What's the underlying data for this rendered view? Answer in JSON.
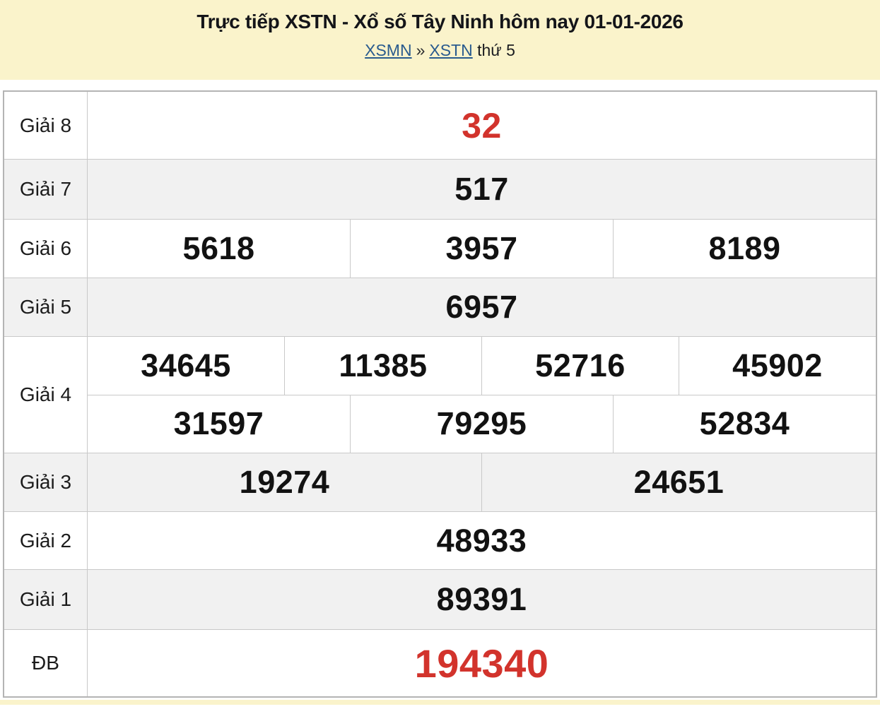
{
  "header": {
    "title": "Trực tiếp XSTN - Xổ số Tây Ninh hôm nay 01-01-2026",
    "breadcrumb": {
      "xsmn": "XSMN",
      "separator": "»",
      "xstn": "XSTN",
      "day": "thứ 5"
    }
  },
  "colors": {
    "banner_yellow": "#faf3cb",
    "alt_row_gray": "#f1f1f1",
    "accent_red": "#d2332c",
    "link_blue": "#2a5b8e",
    "border_gray": "#c9c9c9"
  },
  "results": {
    "rows": [
      {
        "label": "Giải 8",
        "values": [
          "32"
        ],
        "highlight": true
      },
      {
        "label": "Giải 7",
        "values": [
          "517"
        ]
      },
      {
        "label": "Giải 6",
        "values": [
          "5618",
          "3957",
          "8189"
        ]
      },
      {
        "label": "Giải 5",
        "values": [
          "6957"
        ]
      },
      {
        "label": "Giải 4",
        "sub_rows": [
          [
            "34645",
            "11385",
            "52716",
            "45902"
          ],
          [
            "31597",
            "79295",
            "52834"
          ]
        ]
      },
      {
        "label": "Giải 3",
        "values": [
          "19274",
          "24651"
        ]
      },
      {
        "label": "Giải 2",
        "values": [
          "48933"
        ]
      },
      {
        "label": "Giải 1",
        "values": [
          "89391"
        ]
      },
      {
        "label": "ĐB",
        "values": [
          "194340"
        ],
        "highlight": true
      }
    ]
  }
}
